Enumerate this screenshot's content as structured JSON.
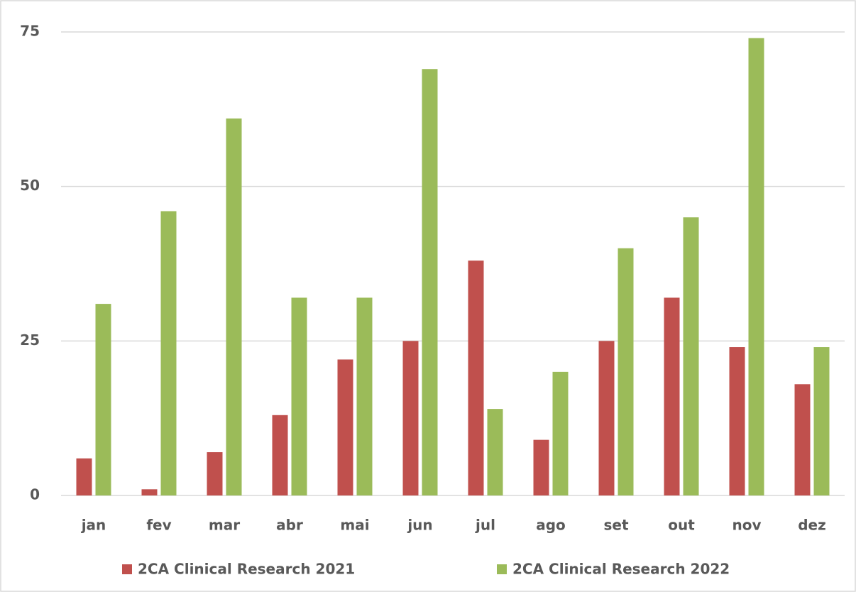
{
  "chart_data": {
    "type": "bar",
    "categories": [
      "jan",
      "fev",
      "mar",
      "abr",
      "mai",
      "jun",
      "jul",
      "ago",
      "set",
      "out",
      "nov",
      "dez"
    ],
    "series": [
      {
        "name": "2CA Clinical Research 2021",
        "color": "#c0504d",
        "values": [
          6,
          1,
          7,
          13,
          22,
          25,
          38,
          9,
          25,
          32,
          24,
          18
        ]
      },
      {
        "name": "2CA Clinical Research 2022",
        "color": "#9bbb59",
        "values": [
          31,
          46,
          61,
          32,
          32,
          69,
          14,
          20,
          40,
          45,
          74,
          24
        ]
      }
    ],
    "ylim": [
      0,
      75
    ],
    "yticks": [
      0,
      25,
      50,
      75
    ],
    "grid": true,
    "legend": "bottom"
  }
}
